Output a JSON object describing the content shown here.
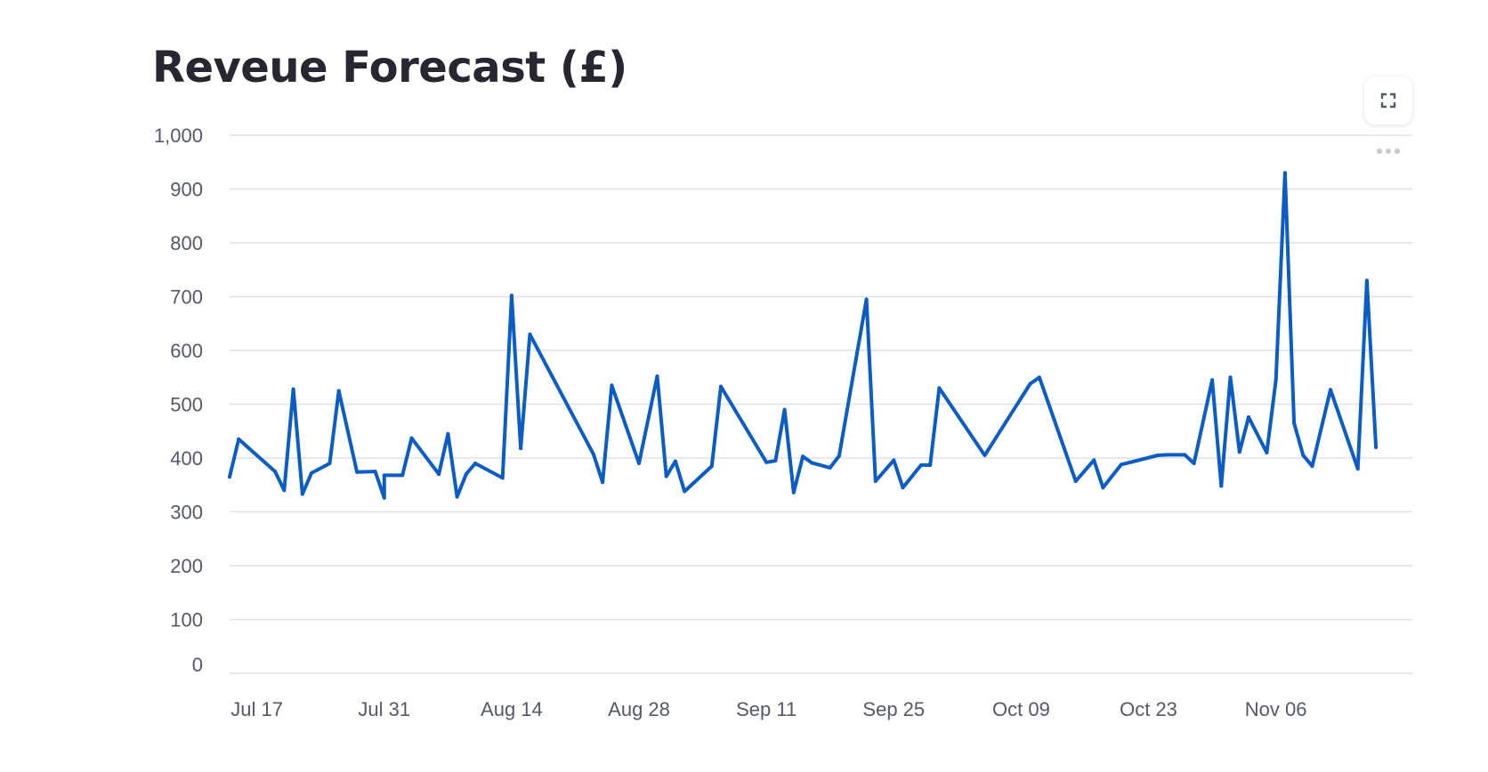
{
  "title": "Reveue Forecast (£)",
  "toolbar": {
    "fullscreen_icon": "fullscreen-icon",
    "menu_icon": "more-horizontal-icon"
  },
  "colors": {
    "line": "#0b5cc4",
    "grid": "#dfe1e6",
    "text": "#555867",
    "title": "#262730"
  },
  "chart_data": {
    "type": "line",
    "title": "Reveue Forecast (£)",
    "xlabel": "",
    "ylabel": "",
    "ylim": [
      0,
      1000
    ],
    "xlim": [
      "2023-07-14",
      "2023-11-21"
    ],
    "grid": true,
    "legend": "none",
    "y_ticks": [
      0,
      100,
      200,
      300,
      400,
      500,
      600,
      700,
      800,
      900,
      1000
    ],
    "y_tick_labels": [
      "0",
      "100",
      "200",
      "300",
      "400",
      "500",
      "600",
      "700",
      "800",
      "900",
      "1,000"
    ],
    "x_ticks": [
      "2023-07-17",
      "2023-07-31",
      "2023-08-14",
      "2023-08-28",
      "2023-09-11",
      "2023-09-25",
      "2023-10-09",
      "2023-10-23",
      "2023-11-06"
    ],
    "x_tick_labels": [
      "Jul 17",
      "Jul 31",
      "Aug 14",
      "Aug 28",
      "Sep 11",
      "Sep 25",
      "Oct 09",
      "Oct 23",
      "Nov 06"
    ],
    "series": [
      {
        "x": [
          "2023-07-14",
          "2023-07-15",
          "2023-07-19",
          "2023-07-20",
          "2023-07-21",
          "2023-07-22",
          "2023-07-23",
          "2023-07-25",
          "2023-07-26",
          "2023-07-28",
          "2023-07-30",
          "2023-07-31",
          "2023-07-31",
          "2023-08-02",
          "2023-08-03",
          "2023-08-06",
          "2023-08-07",
          "2023-08-08",
          "2023-08-09",
          "2023-08-10",
          "2023-08-13",
          "2023-08-14",
          "2023-08-15",
          "2023-08-16",
          "2023-08-23",
          "2023-08-24",
          "2023-08-25",
          "2023-08-28",
          "2023-08-30",
          "2023-08-31",
          "2023-09-01",
          "2023-09-02",
          "2023-09-05",
          "2023-09-06",
          "2023-09-11",
          "2023-09-12",
          "2023-09-13",
          "2023-09-14",
          "2023-09-15",
          "2023-09-16",
          "2023-09-18",
          "2023-09-19",
          "2023-09-22",
          "2023-09-23",
          "2023-09-25",
          "2023-09-26",
          "2023-09-28",
          "2023-09-29",
          "2023-09-30",
          "2023-10-05",
          "2023-10-10",
          "2023-10-11",
          "2023-10-15",
          "2023-10-17",
          "2023-10-18",
          "2023-10-20",
          "2023-10-24",
          "2023-10-25",
          "2023-10-27",
          "2023-10-28",
          "2023-10-30",
          "2023-10-31",
          "2023-11-01",
          "2023-11-02",
          "2023-11-03",
          "2023-11-05",
          "2023-11-06",
          "2023-11-07",
          "2023-11-08",
          "2023-11-09",
          "2023-11-10",
          "2023-11-12",
          "2023-11-15",
          "2023-11-16",
          "2023-11-17"
        ],
        "values": [
          365,
          435,
          375,
          340,
          528,
          333,
          372,
          390,
          525,
          374,
          375,
          326,
          368,
          368,
          437,
          370,
          445,
          328,
          370,
          390,
          363,
          702,
          418,
          630,
          407,
          355,
          535,
          390,
          552,
          366,
          394,
          338,
          385,
          533,
          392,
          395,
          490,
          336,
          403,
          391,
          382,
          404,
          695,
          357,
          396,
          345,
          387,
          387,
          530,
          405,
          538,
          550,
          357,
          396,
          345,
          388,
          405,
          406,
          406,
          390,
          545,
          348,
          550,
          411,
          476,
          410,
          545,
          930,
          465,
          405,
          385,
          527,
          380,
          730,
          420
        ]
      }
    ]
  }
}
